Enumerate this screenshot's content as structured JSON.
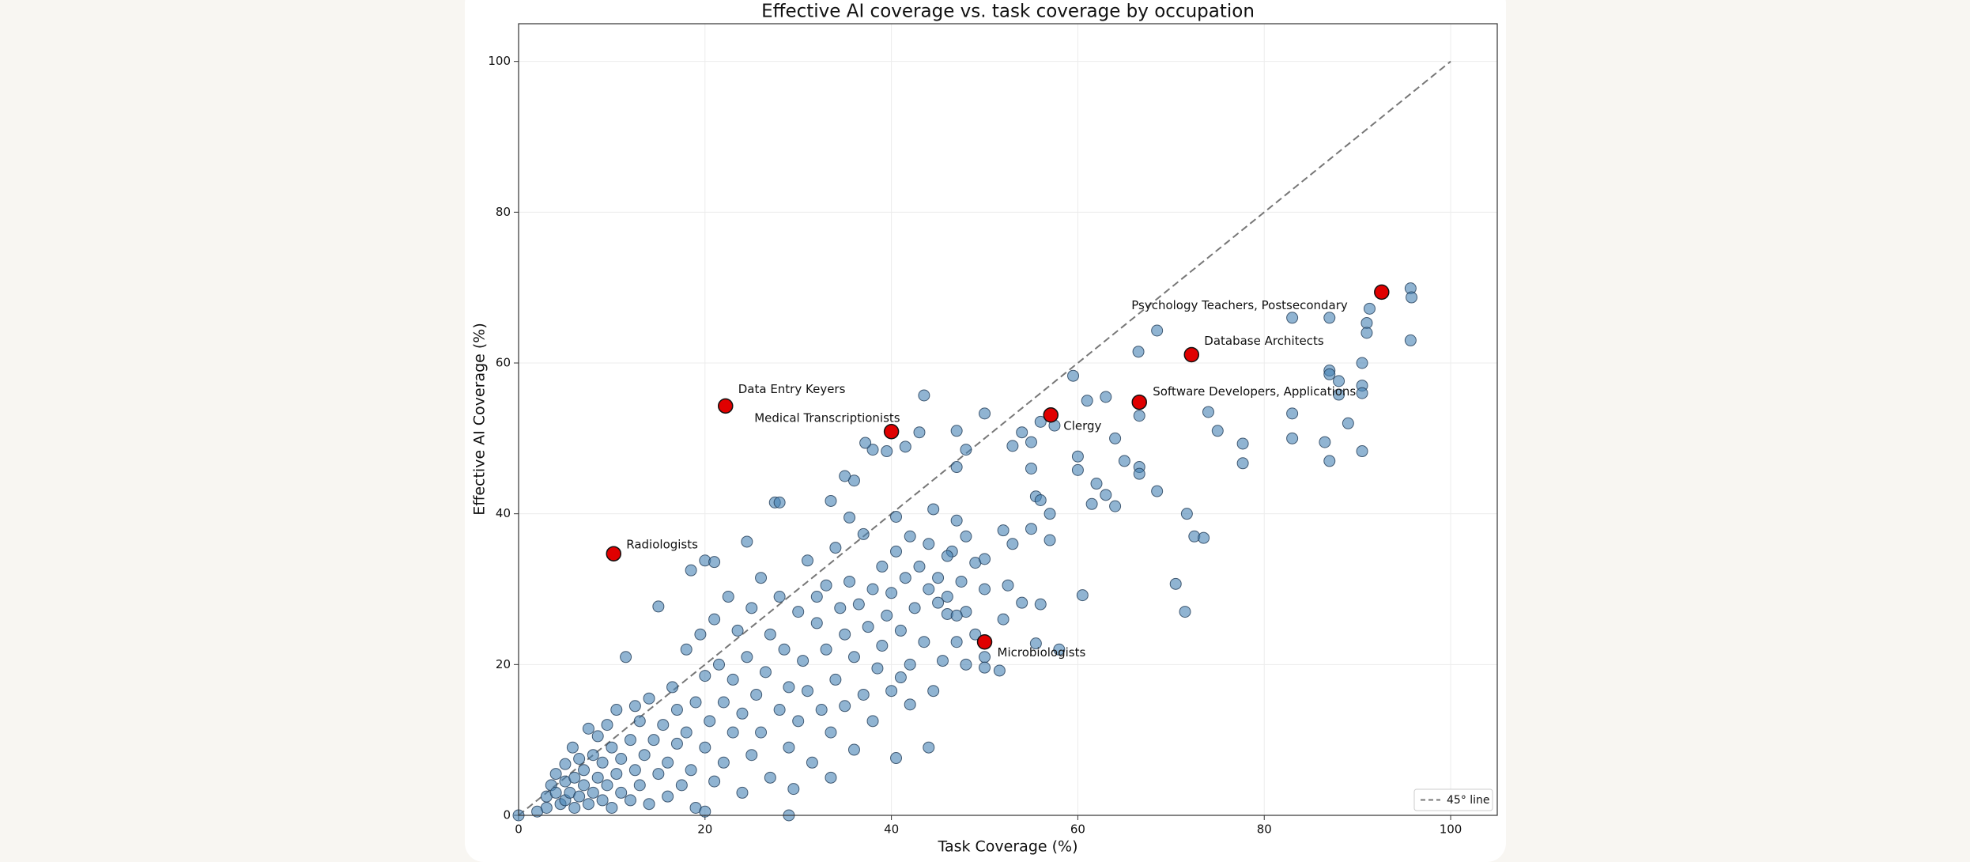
{
  "chart_data": {
    "type": "scatter",
    "title": "Effective AI coverage vs. task coverage by occupation",
    "x_label": "Task Coverage (%)",
    "y_label": "Effective AI Coverage (%)",
    "xlim": [
      0,
      105
    ],
    "ylim": [
      0,
      105
    ],
    "xticks": [
      0,
      20,
      40,
      60,
      80,
      100
    ],
    "yticks": [
      0,
      20,
      40,
      60,
      80,
      100
    ],
    "grid": true,
    "legend_position": "lower right",
    "points": {
      "color": "#4682b4",
      "x": [
        0,
        2,
        3,
        3,
        3.5,
        4,
        4,
        4.5,
        5,
        5,
        5,
        5.5,
        5.8,
        6,
        6,
        6.5,
        6.5,
        7,
        7,
        7.5,
        7.5,
        8,
        8,
        8.5,
        8.5,
        9,
        9,
        9.5,
        9.5,
        10,
        10,
        10.5,
        10.5,
        11,
        11,
        11.5,
        12,
        12,
        12.5,
        12.5,
        13,
        13,
        13.5,
        14,
        14,
        14.5,
        15,
        15,
        15.5,
        16,
        16,
        16.5,
        17,
        17,
        17.5,
        18,
        18,
        18.5,
        18.5,
        19,
        19,
        19.5,
        20,
        20,
        20,
        20.5,
        21,
        21,
        21,
        21.5,
        22,
        22,
        22.5,
        23,
        23,
        23.5,
        24,
        24,
        24.5,
        24.5,
        25,
        25,
        25.5,
        26,
        26,
        26.5,
        27,
        27,
        27.5,
        28,
        28,
        28.5,
        29,
        29,
        29.5,
        30,
        30,
        30.5,
        31,
        31,
        31.5,
        32,
        32,
        32.5,
        33,
        33,
        33.5,
        34,
        34,
        34.5,
        35,
        35,
        35.5,
        36,
        36,
        36.5,
        37,
        37,
        37.5,
        38,
        38,
        38.5,
        39,
        39,
        39.5,
        40,
        40,
        40.5,
        41,
        41.5,
        42,
        42,
        42.5,
        43,
        43.5,
        44,
        44.5,
        45,
        45.5,
        46,
        46.5,
        47,
        47.5,
        48,
        48,
        49,
        49,
        50,
        50,
        52.5,
        53,
        54,
        52,
        29,
        33.5,
        20,
        95.7,
        95.8,
        95.7,
        91.3,
        91,
        91,
        90.5,
        90.5,
        90.5,
        90.5,
        87,
        83,
        87,
        87,
        88,
        88,
        89,
        86.5,
        87,
        83,
        83,
        77.7,
        77.7,
        75,
        74,
        68.5,
        66.5,
        66.6,
        66.6,
        66.6,
        71.7,
        72.5,
        73.5,
        70.5,
        71.5,
        68.5,
        65,
        64,
        63,
        61,
        59.5,
        60,
        60,
        62,
        63,
        64,
        61.5,
        56,
        57.5,
        55,
        54,
        53,
        55,
        55.5,
        56,
        57,
        57,
        55,
        60.5,
        56,
        55.5,
        58,
        52,
        51.6,
        50,
        50,
        50,
        47,
        48,
        47,
        43.5,
        43,
        41.5,
        38,
        37.2,
        39.5,
        36,
        35,
        33.5,
        35.5,
        28,
        40.5,
        44.5,
        47,
        48,
        46,
        44,
        45,
        46,
        47,
        41,
        42,
        40.5,
        44
      ],
      "y": [
        0,
        0.5,
        1,
        2.5,
        4,
        3,
        5.5,
        1.5,
        2,
        4.5,
        6.8,
        3,
        9,
        1,
        5,
        7.5,
        2.5,
        4,
        6,
        11.5,
        1.5,
        3,
        8,
        5,
        10.5,
        2,
        7,
        4,
        12,
        9,
        1,
        14,
        5.5,
        3,
        7.5,
        21,
        10,
        2,
        14.5,
        6,
        12.5,
        4,
        8,
        1.5,
        15.5,
        10,
        5.5,
        27.7,
        12,
        7,
        2.5,
        17,
        9.5,
        14,
        4,
        11,
        22,
        6,
        32.5,
        15,
        1,
        24,
        9,
        18.5,
        33.8,
        12.5,
        4.5,
        26,
        33.6,
        20,
        15,
        7,
        29,
        11,
        18,
        24.5,
        3,
        13.5,
        36.3,
        21,
        27.5,
        8,
        16,
        31.5,
        11,
        19,
        24,
        5,
        41.5,
        14,
        29,
        22,
        9,
        17,
        3.5,
        27,
        12.5,
        20.5,
        33.8,
        16.5,
        7,
        25.5,
        29,
        14,
        22,
        30.5,
        11,
        35.5,
        18,
        27.5,
        24,
        14.5,
        31,
        21,
        8.7,
        28,
        16,
        37.3,
        25,
        30,
        12.5,
        19.5,
        33,
        22.5,
        26.5,
        16.5,
        29.5,
        35,
        24.5,
        31.5,
        20,
        37,
        27.5,
        33,
        23,
        36,
        16.5,
        31.5,
        20.5,
        29,
        35,
        23,
        31,
        27,
        20,
        33.5,
        24,
        30,
        34,
        30.5,
        36,
        28.2,
        37.8,
        0,
        5,
        0.5,
        69.9,
        68.7,
        63,
        67.2,
        65.3,
        64,
        60,
        57,
        56,
        48.3,
        66,
        66,
        59,
        58.5,
        57.6,
        55.8,
        52,
        49.5,
        47,
        53.3,
        50,
        49.3,
        46.7,
        51,
        53.5,
        64.3,
        61.5,
        53,
        46.2,
        45.3,
        40,
        37,
        36.8,
        30.7,
        27,
        43,
        47,
        50,
        55.5,
        55,
        58.3,
        47.6,
        45.8,
        44,
        42.5,
        41,
        41.3,
        52.2,
        51.7,
        49.5,
        50.8,
        49,
        46,
        42.3,
        41.8,
        40,
        36.5,
        38,
        29.2,
        28,
        22.8,
        22,
        26,
        19.2,
        21,
        19.6,
        53.3,
        51,
        48.5,
        46.2,
        55.7,
        50.8,
        48.9,
        48.5,
        49.4,
        48.3,
        44.4,
        45,
        41.7,
        39.5,
        41.5,
        39.6,
        40.6,
        39.1,
        37,
        34.4,
        30,
        28.2,
        26.7,
        26.5,
        18.3,
        14.7,
        7.6,
        9
      ]
    },
    "highlights": {
      "color": "#e00000",
      "labels": [
        "Psychology Teachers, Postsecondary",
        "Database Architects",
        "Software Developers, Applications",
        "Clergy",
        "Medical Transcriptionists",
        "Data Entry Keyers",
        "Radiologists",
        "Microbiologists"
      ],
      "x": [
        92.6,
        72.2,
        66.6,
        57.1,
        40.0,
        22.2,
        10.2,
        50.0
      ],
      "y": [
        69.4,
        61.1,
        54.8,
        53.1,
        50.9,
        54.3,
        34.7,
        23.0
      ]
    },
    "reference_line": {
      "name": "45° line",
      "color": "#777777",
      "x": [
        0,
        100
      ],
      "y": [
        0,
        100
      ]
    }
  }
}
